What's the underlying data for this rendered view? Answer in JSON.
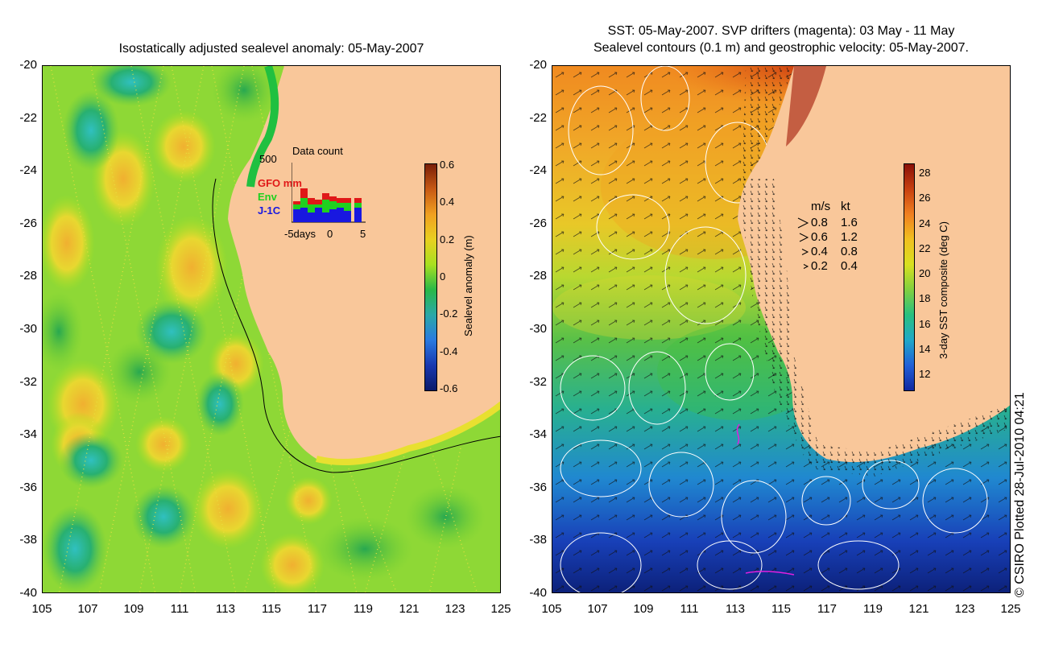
{
  "left_map": {
    "title": "Isostatically adjusted sealevel anomaly: 05-May-2007",
    "y_ticks": [
      "-20",
      "-22",
      "-24",
      "-26",
      "-28",
      "-30",
      "-32",
      "-34",
      "-36",
      "-38",
      "-40"
    ],
    "x_ticks": [
      "105",
      "107",
      "109",
      "111",
      "113",
      "115",
      "117",
      "119",
      "121",
      "123",
      "125"
    ],
    "colorbar": {
      "label": "Sealevel anomaly (m)",
      "ticks": [
        "0.6",
        "0.4",
        "0.2",
        "0",
        "-0.2",
        "-0.4",
        "-0.6"
      ],
      "colors": [
        "#7a1e08",
        "#c85a14",
        "#f0a020",
        "#e8d020",
        "#a8e020",
        "#28b848",
        "#2aa8a8",
        "#2a7ae0",
        "#1838b0",
        "#0a1a6a"
      ]
    },
    "inset": {
      "max_label": "500",
      "title": "Data count",
      "legend": [
        {
          "label": "GFO mm",
          "color": "#e01818"
        },
        {
          "label": "Env",
          "color": "#20d020"
        },
        {
          "label": "J-1C",
          "color": "#1818e0"
        }
      ],
      "x_labels": [
        "-5days",
        "0",
        "5"
      ]
    }
  },
  "right_map": {
    "title_line1": "SST: 05-May-2007. SVP drifters (magenta): 03 May - 11 May",
    "title_line2": "Sealevel contours (0.1 m) and geostrophic velocity: 05-May-2007.",
    "y_ticks": [
      "-20",
      "-22",
      "-24",
      "-26",
      "-28",
      "-30",
      "-32",
      "-34",
      "-36",
      "-38",
      "-40"
    ],
    "x_ticks": [
      "105",
      "107",
      "109",
      "111",
      "113",
      "115",
      "117",
      "119",
      "121",
      "123",
      "125"
    ],
    "colorbar": {
      "label": "3-day SST composite (deg C)",
      "ticks": [
        "28",
        "26",
        "24",
        "22",
        "20",
        "18",
        "16",
        "14",
        "12"
      ],
      "colors": [
        "#8a1008",
        "#c84010",
        "#f08020",
        "#f0c020",
        "#d8e020",
        "#80d040",
        "#28c080",
        "#20a8c8",
        "#2060d8",
        "#1028a0"
      ]
    },
    "velocity_legend": {
      "header_ms": "m/s",
      "header_kt": "kt",
      "rows": [
        {
          "ms": "0.8",
          "kt": "1.6"
        },
        {
          "ms": "0.6",
          "kt": "1.2"
        },
        {
          "ms": "0.4",
          "kt": "0.8"
        },
        {
          "ms": "0.2",
          "kt": "0.4"
        }
      ]
    }
  },
  "credit": "© CSIRO Plotted 28-Jul-2010 04:21",
  "colors": {
    "land": "#f9c79a",
    "coast_green": "#20c040"
  }
}
